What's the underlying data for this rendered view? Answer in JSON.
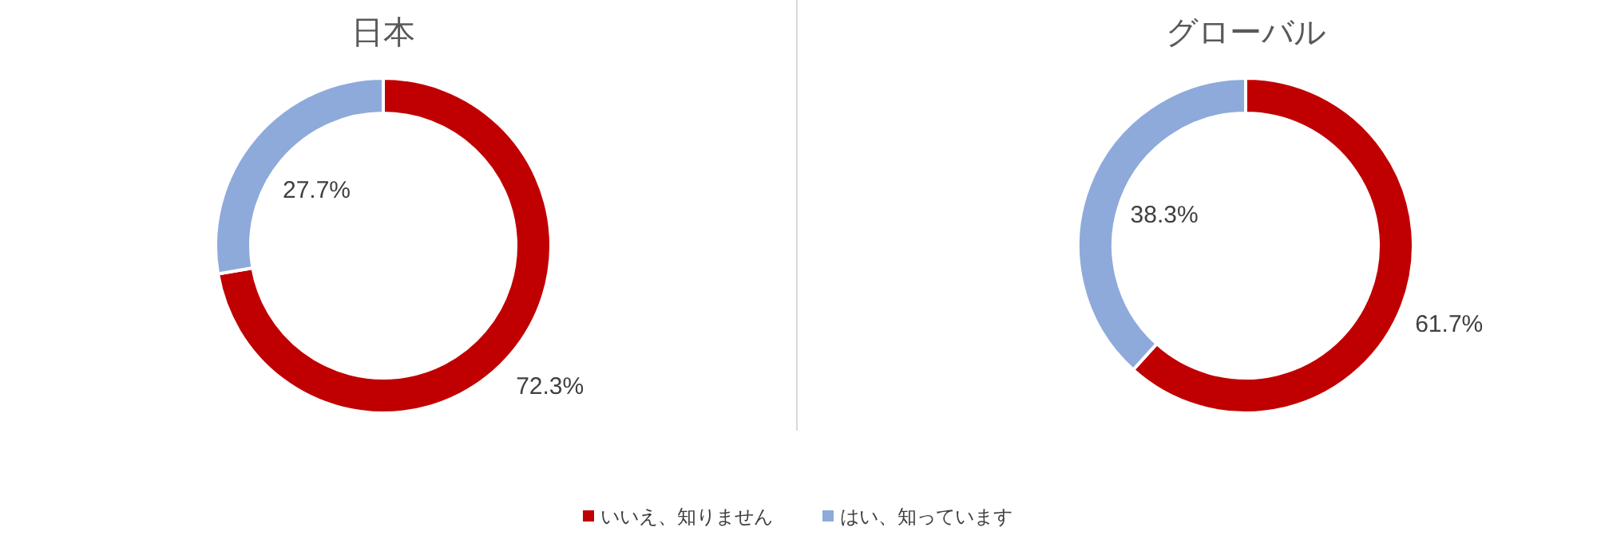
{
  "chart_data": [
    {
      "type": "donut",
      "title": "日本",
      "categories": [
        "いいえ、知りません",
        "はい、知っています"
      ],
      "values": [
        72.3,
        27.7
      ],
      "colors": [
        "#c00000",
        "#8eaadb"
      ],
      "value_labels": [
        "72.3%",
        "27.7%"
      ],
      "legend": "bottom"
    },
    {
      "type": "donut",
      "title": "グローバル",
      "categories": [
        null,
        null
      ],
      "values": [
        61.7,
        38.3
      ],
      "colors": [
        "#c00000",
        "#8eaadb"
      ],
      "value_labels": [
        "61.7%",
        "38.3%"
      ]
    }
  ]
}
